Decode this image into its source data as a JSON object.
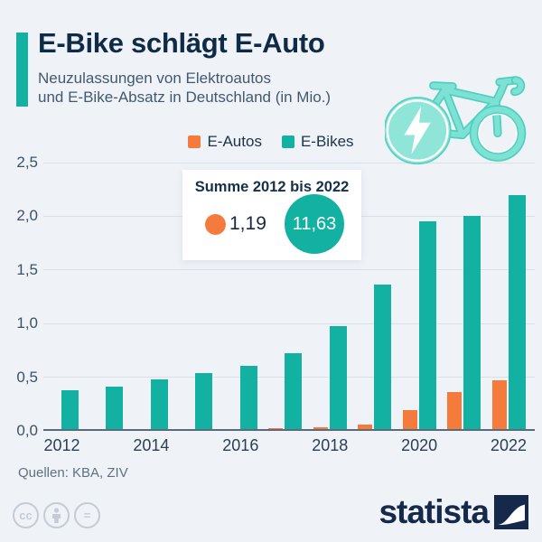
{
  "header": {
    "title": "E-Bike schlägt E-Auto",
    "subtitle_line1": "Neuzulassungen von Elektroautos",
    "subtitle_line2": "und E-Bike-Absatz in Deutschland (in Mio.)"
  },
  "colors": {
    "background": "#eff3f8",
    "teal": "#13b1a1",
    "orange": "#f57b3d",
    "title_navy": "#0f2b46",
    "brand_navy": "#15294b",
    "bike_mint": "#7de2d4"
  },
  "legend": {
    "items": [
      {
        "label": "E-Autos",
        "color": "#f57b3d"
      },
      {
        "label": "E-Bikes",
        "color": "#13b1a1"
      }
    ]
  },
  "callout": {
    "title": "Summe 2012 bis 2022",
    "e_autos_sum": "1,19",
    "e_bikes_sum": "11,63"
  },
  "chart_data": {
    "type": "bar",
    "title": "E-Bike schlägt E-Auto",
    "subtitle": "Neuzulassungen von Elektroautos und E-Bike-Absatz in Deutschland (in Mio.)",
    "categories": [
      "2012",
      "2013",
      "2014",
      "2015",
      "2016",
      "2017",
      "2018",
      "2019",
      "2020",
      "2021",
      "2022"
    ],
    "series": [
      {
        "name": "E-Autos",
        "color": "#f57b3d",
        "values": [
          0.003,
          0.006,
          0.009,
          0.012,
          0.011,
          0.025,
          0.036,
          0.063,
          0.19,
          0.36,
          0.47
        ]
      },
      {
        "name": "E-Bikes",
        "color": "#13b1a1",
        "values": [
          0.38,
          0.41,
          0.48,
          0.54,
          0.61,
          0.72,
          0.98,
          1.36,
          1.95,
          2.0,
          2.2
        ]
      }
    ],
    "ylim": [
      0,
      2.5
    ],
    "yticks": [
      {
        "value": 0,
        "label": "0,0"
      },
      {
        "value": 0.5,
        "label": "0,5"
      },
      {
        "value": 1,
        "label": "1,0"
      },
      {
        "value": 1.5,
        "label": "1,5"
      },
      {
        "value": 2,
        "label": "2,0"
      },
      {
        "value": 2.5,
        "label": "2,5"
      }
    ],
    "x_labeled_every": 2,
    "grid": "horizontal",
    "legend_position": "top"
  },
  "footer": {
    "source": "Quellen: KBA, ZIV",
    "license_badges": [
      "cc",
      "attribution",
      "no-derivatives"
    ],
    "cc_label": "cc",
    "equals_label": "=",
    "brand": "statista"
  }
}
